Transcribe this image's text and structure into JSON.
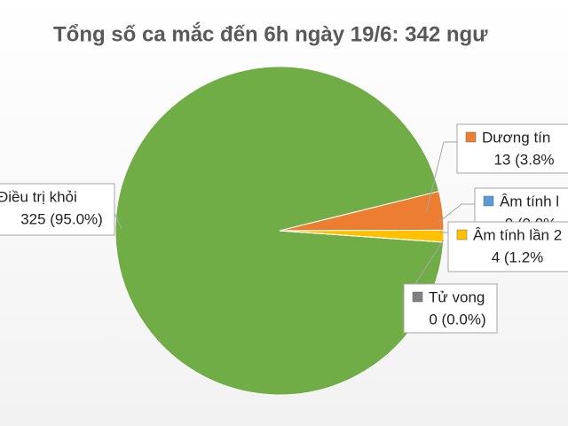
{
  "chart_data": {
    "type": "pie",
    "title": "Tổng số ca mắc đến 6h ngày 19/6: 342 ngư",
    "categories": [
      "Điều trị khỏi",
      "Dương tín",
      "Âm tính l",
      "Âm tính lần 2",
      "Tử vong"
    ],
    "values": [
      325,
      13,
      0,
      4,
      0
    ],
    "value_labels": [
      "325 (95.0%)",
      "13 (3.8%",
      "0 (0.0%",
      "4 (1.2%",
      "0 (0.0%)"
    ],
    "colors": [
      "#70ad47",
      "#ed7d31",
      "#5b9bd5",
      "#ffc000",
      "#7f7f7f"
    ]
  }
}
